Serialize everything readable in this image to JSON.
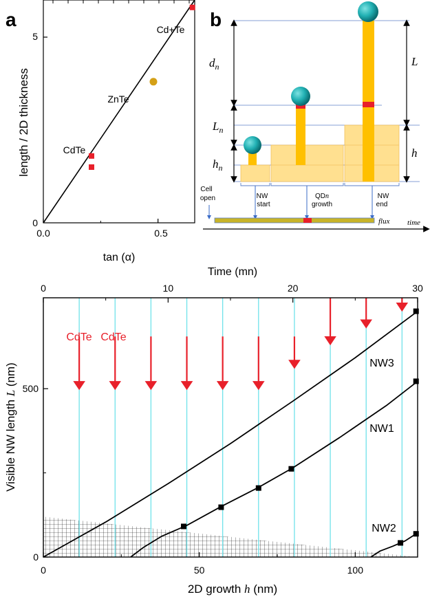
{
  "panel_a": {
    "letter": "a",
    "ylabel": "length / 2D thickness",
    "xlabel": "tan (α)",
    "xticks": [
      "0.0",
      "0.5"
    ],
    "yticks": [
      "0",
      "5"
    ],
    "point_labels": {
      "cdte": "CdTe",
      "znte": "ZnTe",
      "cdte_te": "Cd+Te"
    }
  },
  "panel_b": {
    "letter": "b",
    "labels": {
      "dn_d": "d",
      "dn_n": "n",
      "ln_l": "L",
      "ln_n": "n",
      "hn_h": "h",
      "hn_n": "n",
      "L": "L",
      "h": "h",
      "cell": "Cell",
      "open": "open",
      "nw_start_1": "NW",
      "nw_start_2": "start",
      "qd_1": "QD",
      "qd_n": "n",
      "qd_2": "growth",
      "nw_end_1": "NW",
      "nw_end_2": "end",
      "flux": "flux",
      "time": "time"
    },
    "colors": {
      "nanowire": "#FFC000",
      "slab": "#FFE090",
      "qd": "#E8202A",
      "ball": "#21B0B3"
    }
  },
  "chart_data": [
    {
      "type": "scatter",
      "panel": "a",
      "xlabel": "tan (α)",
      "ylabel": "length / 2D thickness",
      "xlim": [
        0.0,
        0.66
      ],
      "ylim": [
        0,
        6
      ],
      "series": [
        {
          "name": "CdTe",
          "color": "#E8202A",
          "marker": "square",
          "points": [
            {
              "x": 0.21,
              "y": 1.8
            },
            {
              "x": 0.21,
              "y": 1.5
            }
          ]
        },
        {
          "name": "ZnTe",
          "color": "#D4A017",
          "marker": "circle",
          "points": [
            {
              "x": 0.48,
              "y": 3.8
            }
          ]
        },
        {
          "name": "Cd+Te",
          "color": "#E8202A",
          "marker": "square",
          "points": [
            {
              "x": 0.65,
              "y": 5.8
            }
          ]
        }
      ],
      "fit_line": [
        {
          "x": 0.0,
          "y": 0.0
        },
        {
          "x": 0.66,
          "y": 6.0
        }
      ]
    },
    {
      "type": "line",
      "panel": "c",
      "xlabel": "2D growth h (nm)",
      "xlabel_plain": "2D growth ",
      "xlabel_var": "h",
      "xlabel_unit": " (nm)",
      "ylabel": "Visible NW length L (nm)",
      "ylabel_plain": "Visible NW length ",
      "ylabel_var": "L",
      "ylabel_unit": " (nm)",
      "top_axis_label": "Time (mn)",
      "xlim": [
        0,
        120
      ],
      "ylim": [
        0,
        770
      ],
      "xticks": [
        0,
        50,
        100
      ],
      "yticks": [
        0,
        500
      ],
      "top_xlim": [
        0,
        30
      ],
      "top_ticks": [
        0,
        10,
        20,
        30
      ],
      "red_arrow_labels": [
        "CdTe",
        "CdTe"
      ],
      "cyan_lines_x": [
        11.5,
        23,
        34.5,
        46,
        57.5,
        69,
        80.5,
        92,
        103.5,
        115
      ],
      "red_arrows": [
        {
          "x": 11.5,
          "y_from": 655,
          "y_to": 497
        },
        {
          "x": 23,
          "y_from": 655,
          "y_to": 497
        },
        {
          "x": 34.5,
          "y_from": 655,
          "y_to": 497
        },
        {
          "x": 46,
          "y_from": 655,
          "y_to": 497
        },
        {
          "x": 57.5,
          "y_from": 655,
          "y_to": 497
        },
        {
          "x": 69,
          "y_from": 655,
          "y_to": 497
        },
        {
          "x": 80.5,
          "y_from": 655,
          "y_to": 560
        },
        {
          "x": 92,
          "y_from": 770,
          "y_to": 630
        },
        {
          "x": 103.5,
          "y_from": 770,
          "y_to": 680
        },
        {
          "x": 115,
          "y_from": 770,
          "y_to": 730
        }
      ],
      "series": [
        {
          "name": "NW3",
          "x": [
            0,
            20,
            40,
            60,
            80,
            100,
            120
          ],
          "y": [
            0,
            104,
            218,
            337,
            463,
            592,
            730
          ]
        },
        {
          "name": "NW1",
          "x": [
            28,
            32,
            38,
            46,
            57,
            69,
            80,
            95,
            110,
            120
          ],
          "y": [
            0,
            28,
            62,
            94,
            150,
            207,
            265,
            355,
            450,
            522
          ]
        },
        {
          "name": "NW2",
          "x": [
            105,
            108,
            112,
            116,
            120
          ],
          "y": [
            0,
            18,
            32,
            48,
            72
          ]
        }
      ],
      "markers": [
        {
          "x": 45,
          "y": 91
        },
        {
          "x": 57,
          "y": 148
        },
        {
          "x": 69,
          "y": 205
        },
        {
          "x": 79.5,
          "y": 262
        },
        {
          "x": 114.5,
          "y": 42
        },
        {
          "x": 119.5,
          "y": 69
        },
        {
          "x": 119.5,
          "y": 730
        },
        {
          "x": 119.5,
          "y": 522
        }
      ],
      "hatched_region": [
        {
          "x": 0,
          "y": 120
        },
        {
          "x": 120,
          "y": 0
        },
        {
          "x": 0,
          "y": 0
        }
      ]
    }
  ]
}
